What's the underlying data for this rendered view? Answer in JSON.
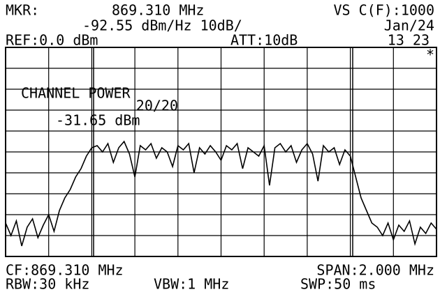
{
  "header": {
    "marker_label": "MKR:",
    "marker_freq": "869.310 MHz",
    "video_avg": "VS C(F):1000",
    "marker_level": "-92.55 dBm/Hz 10dB/",
    "date": "Jan/24",
    "ref": "REF:0.0 dBm",
    "att": "ATT:10dB",
    "time": "13 23",
    "flag": "*"
  },
  "measurement": {
    "title": "CHANNEL POWER",
    "count": "20/20",
    "result": "-31.65 dBm"
  },
  "footer": {
    "cf": "CF:869.310 MHz",
    "span": "SPAN:2.000 MHz",
    "rbw": "RBW:30 kHz",
    "vbw": "VBW:1 MHz",
    "swp": "SWP:50 ms"
  },
  "chart_data": {
    "type": "line",
    "color": "#000000",
    "grid": true,
    "xlim": [
      868.31,
      870.31
    ],
    "ylim": [
      -100,
      0
    ],
    "xticks": [
      868.31,
      868.51,
      868.71,
      868.91,
      869.11,
      869.31,
      869.51,
      869.71,
      869.91,
      870.11,
      870.31
    ],
    "yticks": [
      -100,
      -90,
      -80,
      -70,
      -60,
      -50,
      -40,
      -30,
      -20,
      -10,
      0
    ],
    "values": [
      -84,
      -90,
      -83,
      -95,
      -86,
      -82,
      -91,
      -85,
      -80,
      -88,
      -78,
      -72,
      -68,
      -62,
      -58,
      -52,
      -48,
      -47,
      -50,
      -46,
      -55,
      -48,
      -45,
      -51,
      -62,
      -47,
      -49,
      -46,
      -53,
      -48,
      -50,
      -57,
      -47,
      -49,
      -46,
      -60,
      -48,
      -51,
      -47,
      -50,
      -54,
      -47,
      -49,
      -46,
      -58,
      -48,
      -50,
      -52,
      -47,
      -66,
      -48,
      -46,
      -50,
      -47,
      -55,
      -49,
      -46,
      -51,
      -64,
      -47,
      -50,
      -48,
      -56,
      -49,
      -52,
      -62,
      -72,
      -78,
      -84,
      -86,
      -90,
      -84,
      -92,
      -85,
      -88,
      -83,
      -94,
      -86,
      -89,
      -84,
      -87
    ]
  }
}
